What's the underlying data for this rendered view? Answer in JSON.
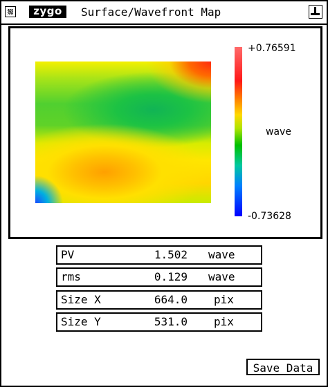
{
  "window": {
    "logo": "zygo",
    "title": "Surface/Wavefront Map"
  },
  "map": {
    "colorbar_max": "+0.76591",
    "colorbar_min": "-0.73628",
    "colorbar_unit": "wave",
    "colors": [
      "#ff6a6a",
      "#ff1818",
      "#ff7a00",
      "#ffd800",
      "#00c000",
      "#0080ff",
      "#0000ff"
    ]
  },
  "stats": [
    {
      "label": "PV",
      "value": "1.502",
      "unit": "wave"
    },
    {
      "label": "rms",
      "value": "0.129",
      "unit": "wave"
    },
    {
      "label": "Size X",
      "value": "664.0",
      "unit": "pix"
    },
    {
      "label": "Size Y",
      "value": "531.0",
      "unit": "pix"
    }
  ],
  "buttons": {
    "save_data": "Save Data"
  },
  "icons": {
    "close": "close-box-icon",
    "pin": "pin-icon"
  }
}
